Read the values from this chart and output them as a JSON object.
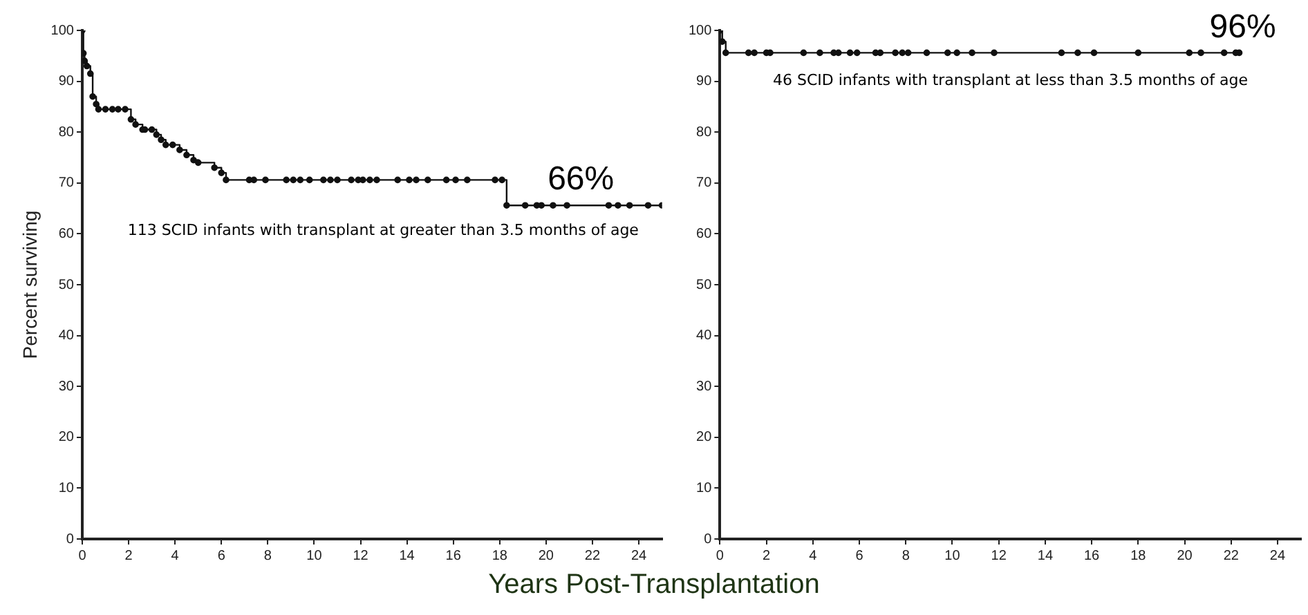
{
  "chart_data": [
    {
      "type": "step",
      "ylabel": "Percent surviving",
      "xlabel": "Years Post-Transplantation",
      "x": [
        0,
        0.05,
        0.1,
        0.2,
        0.35,
        0.45,
        0.6,
        0.7,
        1.0,
        1.3,
        1.55,
        1.85,
        2.1,
        2.3,
        2.6,
        2.7,
        3.0,
        3.2,
        3.4,
        3.6,
        3.9,
        4.2,
        4.5,
        4.8,
        5.0,
        5.7,
        6.0,
        6.2,
        7.2,
        7.4,
        7.9,
        8.8,
        9.1,
        9.4,
        9.8,
        10.4,
        10.7,
        11.0,
        11.6,
        11.9,
        12.1,
        12.4,
        12.7,
        13.6,
        14.1,
        14.4,
        14.9,
        15.7,
        16.1,
        16.6,
        17.8,
        18.1,
        18.3,
        19.1,
        19.6,
        19.8,
        20.3,
        20.9,
        22.7,
        23.1,
        23.6,
        24.4,
        25
      ],
      "series": [
        {
          "color": "#111111",
          "values": [
            100,
            95.5,
            94,
            93,
            91.5,
            87,
            85.5,
            84.5,
            84.5,
            84.5,
            84.5,
            84.5,
            82.5,
            81.5,
            80.5,
            80.5,
            80.5,
            79.5,
            78.5,
            77.5,
            77.5,
            76.5,
            75.5,
            74.5,
            74,
            73,
            72,
            70.6,
            70.6,
            70.6,
            70.6,
            70.6,
            70.6,
            70.6,
            70.6,
            70.6,
            70.6,
            70.6,
            70.6,
            70.6,
            70.6,
            70.6,
            70.6,
            70.6,
            70.6,
            70.6,
            70.6,
            70.6,
            70.6,
            70.6,
            70.6,
            70.6,
            65.6,
            65.6,
            65.6,
            65.6,
            65.6,
            65.6,
            65.6,
            65.6,
            65.6,
            65.6,
            65.6
          ]
        }
      ],
      "xlim": [
        0,
        25
      ],
      "xticks": [
        0,
        2,
        4,
        6,
        8,
        10,
        12,
        14,
        16,
        18,
        20,
        22,
        24
      ],
      "ylim": [
        0,
        100
      ],
      "yticks": [
        0,
        10,
        20,
        30,
        40,
        50,
        60,
        70,
        80,
        90,
        100
      ],
      "marker": "circle",
      "grid": false,
      "legend": false,
      "annotations": [
        {
          "text": "66%",
          "x": 21.5,
          "y": 65.6
        },
        "113 SCID infants with transplant at greater than 3.5 months of age"
      ]
    },
    {
      "type": "step",
      "x": [
        0,
        0.1,
        0.25,
        1.23,
        1.48,
        2.0,
        2.16,
        3.6,
        4.3,
        4.9,
        5.1,
        5.6,
        5.9,
        6.7,
        6.9,
        7.55,
        7.85,
        8.1,
        8.9,
        9.8,
        10.2,
        10.85,
        11.8,
        14.7,
        15.4,
        16.1,
        18.0,
        20.2,
        20.7,
        21.7,
        22.2,
        22.35
      ],
      "series": [
        {
          "color": "#111111",
          "values": [
            100,
            97.8,
            95.6,
            95.6,
            95.6,
            95.6,
            95.6,
            95.6,
            95.6,
            95.6,
            95.6,
            95.6,
            95.6,
            95.6,
            95.6,
            95.6,
            95.6,
            95.6,
            95.6,
            95.6,
            95.6,
            95.6,
            95.6,
            95.6,
            95.6,
            95.6,
            95.6,
            95.6,
            95.6,
            95.6,
            95.6,
            95.6
          ]
        }
      ],
      "xlim": [
        0,
        25
      ],
      "xticks": [
        0,
        2,
        4,
        6,
        8,
        10,
        12,
        14,
        16,
        18,
        20,
        22,
        24
      ],
      "ylim": [
        0,
        100
      ],
      "yticks": [
        0,
        10,
        20,
        30,
        40,
        50,
        60,
        70,
        80,
        90,
        100
      ],
      "marker": "circle",
      "grid": false,
      "legend": false,
      "annotations": [
        {
          "text": "96%",
          "x": 22.5,
          "y": 95.6
        },
        "46 SCID infants with transplant at less than 3.5 months of age"
      ]
    }
  ]
}
